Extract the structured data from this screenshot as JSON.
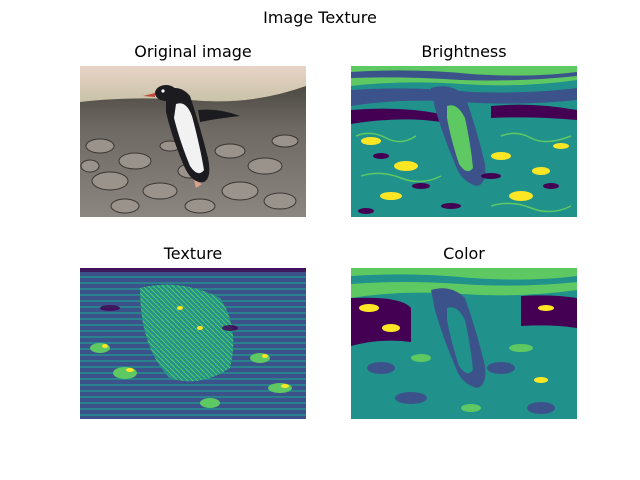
{
  "figure": {
    "title": "Image Texture",
    "panels": [
      {
        "title": "Original image",
        "kind": "photo",
        "subject": "penguin-on-rocks"
      },
      {
        "title": "Brightness",
        "kind": "segmentation",
        "colormap": "viridis"
      },
      {
        "title": "Texture",
        "kind": "segmentation",
        "colormap": "viridis"
      },
      {
        "title": "Color",
        "kind": "segmentation",
        "colormap": "viridis"
      }
    ],
    "colors": {
      "viridis_purple": "#440154",
      "viridis_blue": "#3b528b",
      "viridis_teal": "#21918c",
      "viridis_green": "#5ec962",
      "viridis_yellow": "#fde725"
    }
  }
}
